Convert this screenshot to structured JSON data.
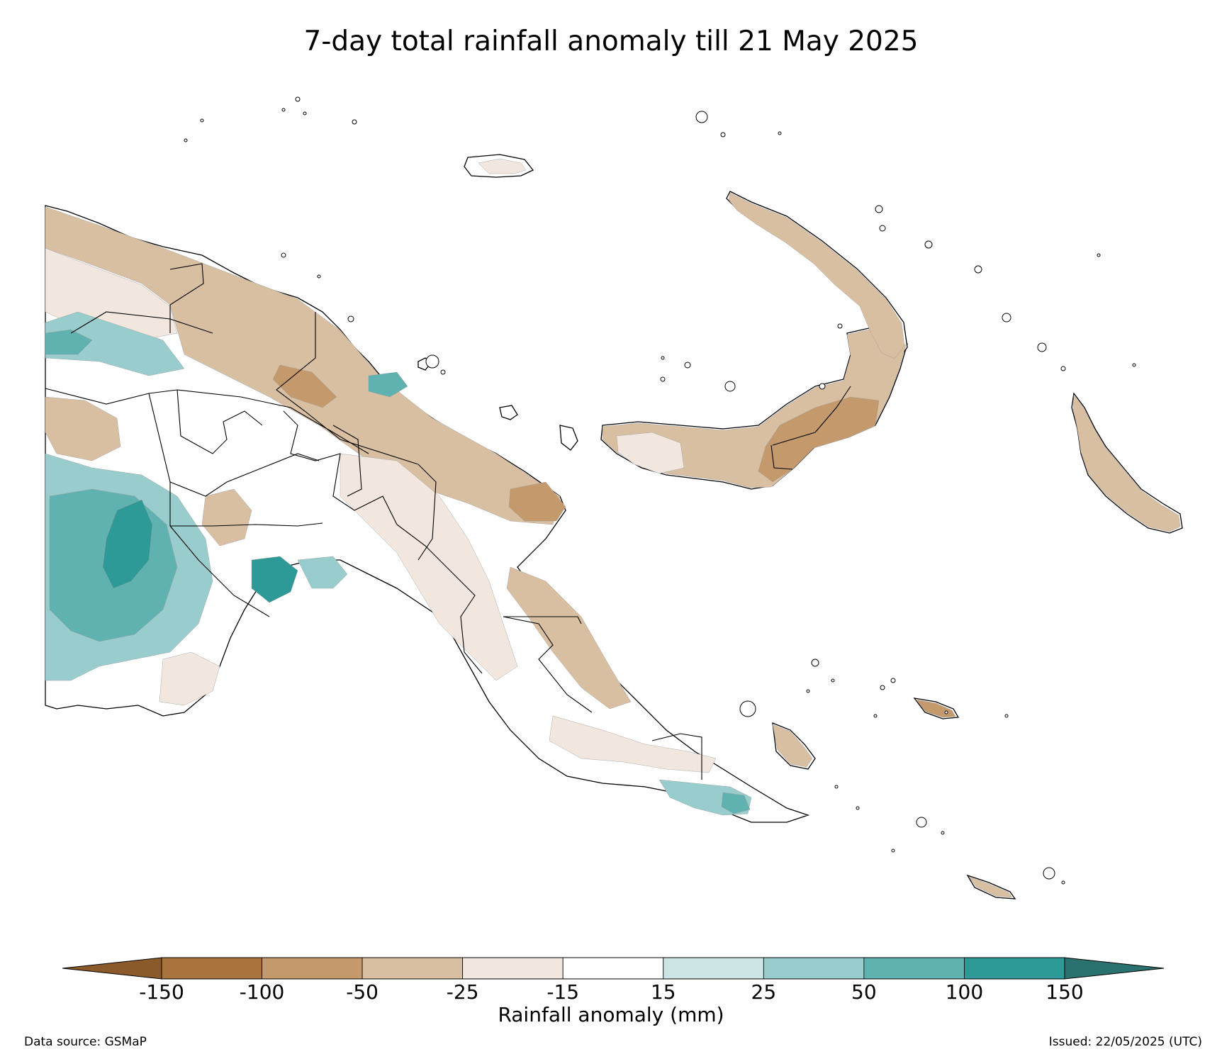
{
  "title": "7-day total rainfall anomaly till 21 May 2025",
  "colorbar": {
    "label": "Rainfall anomaly (mm)",
    "ticks": [
      "-150",
      "-100",
      "-50",
      "-25",
      "-15",
      "15",
      "25",
      "50",
      "100",
      "150"
    ],
    "extend": "both",
    "colors": {
      "below_min": "#8a5a2b",
      "bins": [
        "#a8733c",
        "#c49a6c",
        "#d9bfa1",
        "#f1e7de",
        "#ffffff",
        "#cce5e4",
        "#99cccc",
        "#5fb2b0",
        "#2e9a97"
      ],
      "above_max": "#2a7270"
    }
  },
  "map": {
    "region": "Papua New Guinea",
    "colors": {
      "land_base": "#ffffff",
      "dry_light": "#f1e7de",
      "dry_moderate": "#d9bfa1",
      "dry_strong": "#c49a6c",
      "dry_very_strong": "#a8733c",
      "wet_light": "#cce5e4",
      "wet_moderate": "#99cccc",
      "wet_strong": "#5fb2b0",
      "wet_very_strong": "#2e9a97",
      "boundary": "#000000"
    }
  },
  "footer": {
    "source": "Data source: GSMaP",
    "issued": "Issued: 22/05/2025 (UTC)"
  }
}
